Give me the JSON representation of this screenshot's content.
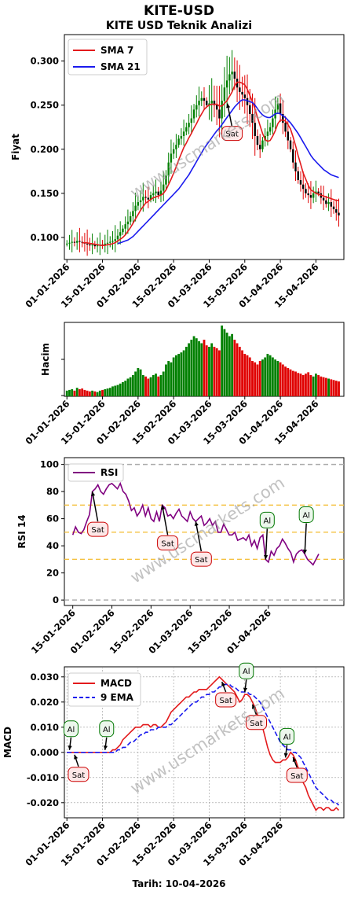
{
  "header": {
    "title": "KITE-USD",
    "subtitle": "KITE USD Teknik Analizi",
    "footer": "Tarih: 10-04-2026",
    "watermark": "www.uscmarkets.com"
  },
  "colors": {
    "up": "#008000",
    "down": "#e00000",
    "sma7": "#e31a1c",
    "sma21": "#1a1aee",
    "rsi": "#800080",
    "macd": "#e31a1c",
    "signal": "#1a1aee",
    "band": "#f5c242",
    "gray": "#aaaaaa"
  },
  "chart_data": [
    {
      "id": "price",
      "type": "line",
      "title": "KITE USD Teknik Analizi",
      "ylabel": "Fiyat",
      "ylim": [
        0.075,
        0.33
      ],
      "yticks": [
        "0.100",
        "0.150",
        "0.200",
        "0.250",
        "0.300"
      ],
      "xticks": [
        "01-01-2026",
        "15-01-2026",
        "01-02-2026",
        "15-02-2026",
        "01-03-2026",
        "15-03-2026",
        "01-04-2026",
        "15-04-2026"
      ],
      "xrange": [
        -1,
        109
      ],
      "candles": "daily high-low range with green (up) / red (down) bodies",
      "close": [
        0.093,
        0.094,
        0.095,
        0.094,
        0.096,
        0.095,
        0.094,
        0.093,
        0.092,
        0.091,
        0.092,
        0.09,
        0.091,
        0.092,
        0.091,
        0.093,
        0.094,
        0.095,
        0.096,
        0.098,
        0.102,
        0.106,
        0.11,
        0.115,
        0.118,
        0.124,
        0.13,
        0.136,
        0.14,
        0.142,
        0.146,
        0.145,
        0.143,
        0.148,
        0.15,
        0.152,
        0.148,
        0.153,
        0.16,
        0.17,
        0.185,
        0.195,
        0.2,
        0.205,
        0.212,
        0.215,
        0.22,
        0.225,
        0.23,
        0.235,
        0.245,
        0.25,
        0.255,
        0.258,
        0.255,
        0.25,
        0.252,
        0.255,
        0.25,
        0.245,
        0.235,
        0.255,
        0.27,
        0.278,
        0.285,
        0.288,
        0.28,
        0.27,
        0.265,
        0.262,
        0.258,
        0.25,
        0.24,
        0.23,
        0.215,
        0.205,
        0.2,
        0.21,
        0.215,
        0.22,
        0.225,
        0.235,
        0.245,
        0.252,
        0.24,
        0.23,
        0.22,
        0.21,
        0.2,
        0.185,
        0.175,
        0.165,
        0.16,
        0.155,
        0.15,
        0.148,
        0.145,
        0.15,
        0.152,
        0.15,
        0.145,
        0.142,
        0.138,
        0.14,
        0.135,
        0.132,
        0.128,
        0.125
      ],
      "series": [
        {
          "name": "SMA 7",
          "values": [
            null,
            null,
            null,
            null,
            null,
            null,
            0.094,
            0.094,
            0.094,
            0.093,
            0.093,
            0.092,
            0.092,
            0.091,
            0.091,
            0.091,
            0.092,
            0.092,
            0.093,
            0.094,
            0.096,
            0.098,
            0.1,
            0.103,
            0.107,
            0.111,
            0.116,
            0.121,
            0.126,
            0.131,
            0.135,
            0.139,
            0.141,
            0.143,
            0.145,
            0.146,
            0.147,
            0.148,
            0.15,
            0.154,
            0.16,
            0.166,
            0.173,
            0.18,
            0.188,
            0.195,
            0.202,
            0.207,
            0.213,
            0.218,
            0.224,
            0.229,
            0.235,
            0.24,
            0.245,
            0.248,
            0.25,
            0.251,
            0.251,
            0.251,
            0.249,
            0.249,
            0.252,
            0.255,
            0.26,
            0.265,
            0.272,
            0.276,
            0.276,
            0.275,
            0.273,
            0.268,
            0.261,
            0.254,
            0.246,
            0.236,
            0.227,
            0.218,
            0.211,
            0.209,
            0.21,
            0.215,
            0.221,
            0.229,
            0.233,
            0.233,
            0.232,
            0.228,
            0.223,
            0.214,
            0.204,
            0.193,
            0.183,
            0.173,
            0.166,
            0.159,
            0.154,
            0.152,
            0.15,
            0.149,
            0.148,
            0.147,
            0.146,
            0.145,
            0.144,
            0.143,
            0.142,
            0.142
          ]
        },
        {
          "name": "SMA 21",
          "values": [
            null,
            null,
            null,
            null,
            null,
            null,
            null,
            null,
            null,
            null,
            null,
            null,
            null,
            null,
            null,
            null,
            null,
            null,
            null,
            null,
            0.093,
            0.094,
            0.095,
            0.096,
            0.097,
            0.099,
            0.101,
            0.104,
            0.107,
            0.11,
            0.113,
            0.116,
            0.119,
            0.122,
            0.125,
            0.128,
            0.131,
            0.134,
            0.137,
            0.14,
            0.143,
            0.146,
            0.149,
            0.152,
            0.155,
            0.159,
            0.163,
            0.167,
            0.171,
            0.176,
            0.181,
            0.186,
            0.191,
            0.196,
            0.201,
            0.205,
            0.209,
            0.213,
            0.217,
            0.221,
            0.224,
            0.228,
            0.232,
            0.236,
            0.24,
            0.244,
            0.248,
            0.251,
            0.254,
            0.256,
            0.256,
            0.255,
            0.254,
            0.253,
            0.25,
            0.246,
            0.242,
            0.239,
            0.237,
            0.236,
            0.236,
            0.238,
            0.24,
            0.241,
            0.24,
            0.238,
            0.236,
            0.233,
            0.23,
            0.226,
            0.222,
            0.218,
            0.213,
            0.208,
            0.203,
            0.198,
            0.193,
            0.189,
            0.186,
            0.183,
            0.18,
            0.177,
            0.175,
            0.173,
            0.171,
            0.17,
            0.169,
            0.168
          ]
        }
      ],
      "annotations": [
        {
          "text": "Sat",
          "x": 65,
          "y": 0.218
        }
      ]
    },
    {
      "id": "volume",
      "type": "bar",
      "ylabel": "Hacim",
      "xticks": [
        "01-01-2026",
        "15-01-2026",
        "01-02-2026",
        "15-02-2026",
        "01-03-2026",
        "15-03-2026",
        "01-04-2026",
        "15-04-2026"
      ],
      "xrange": [
        -1,
        109
      ],
      "values": [
        0.08,
        0.09,
        0.1,
        0.08,
        0.12,
        0.1,
        0.11,
        0.09,
        0.08,
        0.07,
        0.08,
        0.07,
        0.06,
        0.08,
        0.09,
        0.1,
        0.11,
        0.12,
        0.14,
        0.15,
        0.16,
        0.18,
        0.2,
        0.22,
        0.25,
        0.27,
        0.3,
        0.35,
        0.4,
        0.38,
        0.3,
        0.28,
        0.25,
        0.27,
        0.3,
        0.32,
        0.28,
        0.3,
        0.35,
        0.45,
        0.5,
        0.48,
        0.55,
        0.58,
        0.6,
        0.62,
        0.65,
        0.7,
        0.75,
        0.8,
        0.85,
        0.82,
        0.78,
        0.75,
        0.8,
        0.72,
        0.7,
        0.75,
        0.7,
        0.68,
        0.65,
        1.0,
        0.95,
        0.9,
        0.85,
        0.88,
        0.8,
        0.75,
        0.7,
        0.65,
        0.6,
        0.58,
        0.55,
        0.5,
        0.48,
        0.45,
        0.5,
        0.52,
        0.55,
        0.6,
        0.58,
        0.55,
        0.52,
        0.5,
        0.48,
        0.45,
        0.42,
        0.4,
        0.38,
        0.36,
        0.35,
        0.33,
        0.32,
        0.3,
        0.32,
        0.34,
        0.3,
        0.28,
        0.32,
        0.3,
        0.28,
        0.27,
        0.26,
        0.25,
        0.24,
        0.23,
        0.22,
        0.21
      ]
    },
    {
      "id": "rsi",
      "type": "line",
      "ylabel": "RSI 14",
      "ylim": [
        -4,
        105
      ],
      "yticks": [
        "0",
        "20",
        "40",
        "60",
        "80",
        "100"
      ],
      "xticks": [
        "15-01-2026",
        "01-02-2026",
        "15-02-2026",
        "01-03-2026",
        "15-03-2026",
        "01-04-2026"
      ],
      "xrange": [
        11,
        111
      ],
      "lines": {
        "upper": 70,
        "mid": 50,
        "lower": 30,
        "top": 100,
        "bottom": 0
      },
      "series": [
        {
          "name": "RSI",
          "start_index": 14,
          "values": [
            48,
            54,
            50,
            49,
            52,
            58,
            63,
            80,
            82,
            85,
            80,
            78,
            82,
            85,
            86,
            84,
            82,
            86,
            80,
            78,
            73,
            66,
            68,
            62,
            65,
            70,
            62,
            68,
            60,
            58,
            65,
            58,
            70,
            68,
            62,
            63,
            60,
            64,
            67,
            62,
            60,
            58,
            65,
            60,
            58,
            60,
            62,
            55,
            57,
            60,
            55,
            58,
            50,
            50,
            56,
            52,
            48,
            48,
            50,
            44,
            45,
            46,
            44,
            48,
            40,
            44,
            38,
            46,
            48,
            30,
            28,
            36,
            33,
            38,
            40,
            45,
            42,
            38,
            35,
            28,
            34,
            36,
            37,
            34,
            30,
            28,
            26,
            30,
            34
          ]
        }
      ],
      "annotations": [
        {
          "text": "Sat",
          "x": 21
        },
        {
          "text": "Sat",
          "x": 46
        },
        {
          "text": "Sat",
          "x": 58
        },
        {
          "text": "Al",
          "x": 83
        },
        {
          "text": "Al",
          "x": 97
        }
      ]
    },
    {
      "id": "macd",
      "type": "line",
      "ylabel": "MACD",
      "xlabel": "Tarih: 10-04-2026",
      "ylim": [
        -0.026,
        0.034
      ],
      "yticks": [
        "0.030",
        "0.020",
        "0.010",
        "0.000",
        "-0.010",
        "-0.020"
      ],
      "xticks": [
        "01-01-2026",
        "15-01-2026",
        "01-02-2026",
        "15-02-2026",
        "01-03-2026",
        "15-03-2026",
        "01-04-2026"
      ],
      "xrange": [
        -1,
        109
      ],
      "grid": true,
      "series": [
        {
          "name": "MACD",
          "values": [
            0.0,
            0.0,
            0.0,
            0.0,
            0.0,
            0.0,
            0.0,
            0.0,
            0.0,
            0.0,
            0.0,
            0.0,
            0.0,
            0.0,
            0.0,
            0.0,
            0.0,
            0.0,
            0.001,
            0.001,
            0.002,
            0.003,
            0.005,
            0.006,
            0.007,
            0.008,
            0.009,
            0.01,
            0.01,
            0.01,
            0.011,
            0.011,
            0.011,
            0.01,
            0.011,
            0.011,
            0.01,
            0.01,
            0.011,
            0.012,
            0.014,
            0.016,
            0.017,
            0.018,
            0.019,
            0.02,
            0.021,
            0.022,
            0.022,
            0.023,
            0.024,
            0.024,
            0.025,
            0.025,
            0.025,
            0.025,
            0.026,
            0.027,
            0.028,
            0.029,
            0.03,
            0.029,
            0.028,
            0.027,
            0.026,
            0.025,
            0.024,
            0.022,
            0.02,
            0.021,
            0.023,
            0.023,
            0.022,
            0.02,
            0.018,
            0.015,
            0.013,
            0.01,
            0.006,
            0.002,
            -0.001,
            -0.003,
            -0.004,
            -0.004,
            -0.004,
            -0.003,
            -0.003,
            -0.002,
            0.0,
            -0.001,
            -0.003,
            -0.006,
            -0.009,
            -0.012,
            -0.014,
            -0.017,
            -0.019,
            -0.021,
            -0.023,
            -0.022,
            -0.022,
            -0.023,
            -0.022,
            -0.022,
            -0.023,
            -0.023,
            -0.022,
            -0.023
          ]
        },
        {
          "name": "9 EMA",
          "values": [
            0.0,
            0.0,
            0.0,
            0.0,
            0.0,
            0.0,
            0.0,
            0.0,
            0.0,
            0.0,
            0.0,
            0.0,
            0.0,
            0.0,
            0.0,
            0.0,
            0.0,
            0.0,
            0.0,
            0.0,
            0.001,
            0.001,
            0.002,
            0.002,
            0.003,
            0.004,
            0.004,
            0.005,
            0.006,
            0.007,
            0.007,
            0.008,
            0.008,
            0.009,
            0.009,
            0.009,
            0.01,
            0.01,
            0.01,
            0.01,
            0.011,
            0.011,
            0.012,
            0.013,
            0.014,
            0.015,
            0.016,
            0.017,
            0.018,
            0.019,
            0.02,
            0.02,
            0.021,
            0.022,
            0.022,
            0.023,
            0.023,
            0.024,
            0.024,
            0.025,
            0.026,
            0.026,
            0.027,
            0.027,
            0.027,
            0.026,
            0.026,
            0.025,
            0.024,
            0.024,
            0.024,
            0.024,
            0.023,
            0.023,
            0.022,
            0.021,
            0.02,
            0.018,
            0.016,
            0.014,
            0.012,
            0.01,
            0.008,
            0.006,
            0.004,
            0.003,
            0.002,
            0.001,
            0.001,
            0.0,
            0.0,
            -0.001,
            -0.002,
            -0.004,
            -0.006,
            -0.008,
            -0.01,
            -0.012,
            -0.014,
            -0.015,
            -0.016,
            -0.017,
            -0.018,
            -0.019,
            -0.019,
            -0.02,
            -0.02,
            -0.021
          ]
        }
      ],
      "annotations": [
        {
          "text": "Al",
          "x": 1
        },
        {
          "text": "Sat",
          "x": 3
        },
        {
          "text": "Al",
          "x": 15
        },
        {
          "text": "Sat",
          "x": 61
        },
        {
          "text": "Al",
          "x": 70
        },
        {
          "text": "Sat",
          "x": 73
        },
        {
          "text": "Al",
          "x": 86
        },
        {
          "text": "Sat",
          "x": 89
        }
      ]
    }
  ]
}
